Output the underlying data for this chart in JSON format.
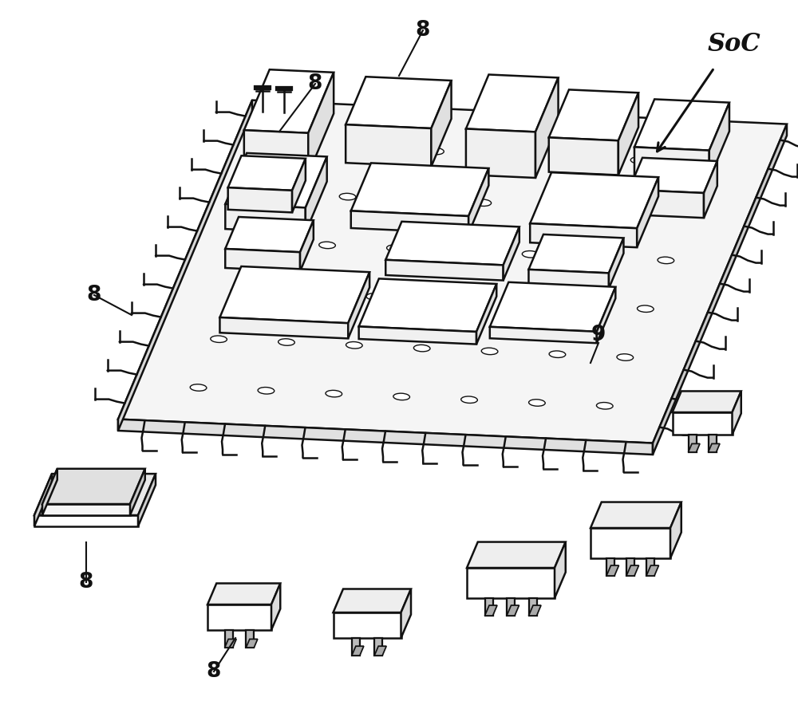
{
  "background_color": "#ffffff",
  "line_color": "#111111",
  "line_width": 1.8,
  "board_color_top": "#f5f5f5",
  "board_color_front": "#e8e8e8",
  "board_color_right": "#d8d8d8",
  "chip_color_top": "#f0f0f0",
  "chip_color_front": "#e8e8e8",
  "chip_color_right": "#d0d0d0"
}
